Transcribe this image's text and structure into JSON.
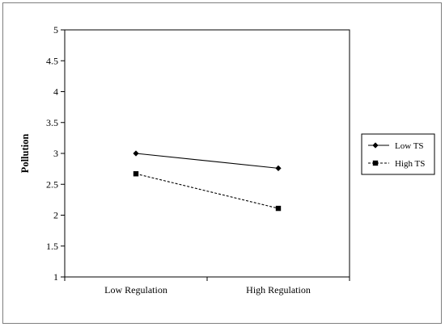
{
  "chart_data": {
    "type": "line",
    "title": "",
    "xlabel": "",
    "ylabel": "Pollution",
    "categories": [
      "Low Regulation",
      "High Regulation"
    ],
    "ylim": [
      1,
      5
    ],
    "yticks": [
      "1",
      "1.5",
      "2",
      "2.5",
      "3",
      "3.5",
      "4",
      "4.5",
      "5"
    ],
    "grid": false,
    "legend_position": "right",
    "series": [
      {
        "name": "Low TS",
        "values": [
          3.0,
          2.76
        ],
        "marker": "diamond",
        "line_style": "solid",
        "color": "#000000"
      },
      {
        "name": "High TS",
        "values": [
          2.67,
          2.11
        ],
        "marker": "square",
        "line_style": "dashed",
        "color": "#000000"
      }
    ]
  }
}
